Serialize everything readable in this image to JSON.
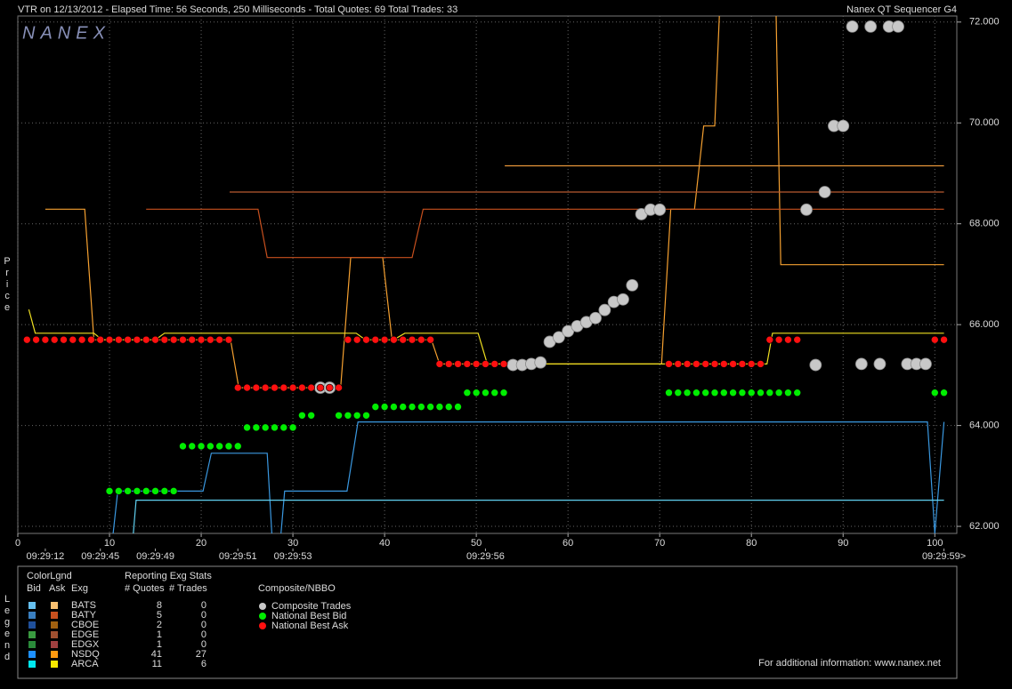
{
  "header": {
    "title": "VTR on 12/13/2012  -  Elapsed Time: 56 Seconds, 250 Milliseconds  -  Total Quotes: 69  Total Trades: 33",
    "product": "Nanex QT Sequencer G4",
    "logo": "NANEX"
  },
  "chart_data": {
    "type": "scatter",
    "y_label": "Price",
    "grid": true,
    "xlim": [
      0,
      102.4
    ],
    "ylim": [
      61.86,
      72.12
    ],
    "xticks": [
      0,
      10,
      20,
      30,
      40,
      50,
      60,
      70,
      80,
      90,
      100
    ],
    "yticks": [
      {
        "value": 62,
        "label": "62.000"
      },
      {
        "value": 64,
        "label": "64.000"
      },
      {
        "value": 66,
        "label": "66.000"
      },
      {
        "value": 68,
        "label": "68.000"
      },
      {
        "value": 70,
        "label": "70.000"
      },
      {
        "value": 72,
        "label": "72.000"
      }
    ],
    "time_ticks": [
      {
        "value": 3,
        "label": "09:29:12"
      },
      {
        "value": 9,
        "label": "09:29:45"
      },
      {
        "value": 15,
        "label": "09:29:49"
      },
      {
        "value": 24,
        "label": "09:29:51"
      },
      {
        "value": 30,
        "label": "09:29:53"
      },
      {
        "value": 51,
        "label": "09:29:56"
      },
      {
        "value": 101,
        "label": "09:29:59>"
      }
    ],
    "series": [
      {
        "name": "Composite Trades",
        "type": "scatter",
        "color": "#c8c8c8",
        "x": [
          33,
          34,
          54,
          55,
          56,
          57,
          58,
          59,
          60,
          61,
          62,
          63,
          64,
          65,
          66,
          67,
          68,
          69,
          70,
          86,
          87,
          88,
          89,
          90,
          91,
          92,
          93,
          94,
          95,
          96,
          97,
          98,
          99
        ],
        "values": [
          64.75,
          64.75,
          65.2,
          65.2,
          65.22,
          65.25,
          65.66,
          65.75,
          65.87,
          65.97,
          66.05,
          66.13,
          66.29,
          66.45,
          66.5,
          66.78,
          68.19,
          68.28,
          68.28,
          68.28,
          65.2,
          68.63,
          69.94,
          69.94,
          71.91,
          65.22,
          71.91,
          65.22,
          71.91,
          71.91,
          65.22,
          65.22,
          65.22
        ]
      },
      {
        "name": "National Best Bid",
        "type": "scatter",
        "color": "#00ee00",
        "x": [
          10,
          11,
          12,
          13,
          14,
          15,
          16,
          17,
          18,
          19,
          20,
          21,
          22,
          23,
          24,
          25,
          26,
          27,
          28,
          29,
          30,
          31,
          32,
          35,
          36,
          37,
          38,
          39,
          40,
          41,
          42,
          43,
          44,
          45,
          46,
          47,
          48,
          49,
          50,
          51,
          52,
          53,
          71,
          72,
          73,
          74,
          75,
          76,
          77,
          78,
          79,
          80,
          81,
          82,
          83,
          84,
          85,
          100,
          101
        ],
        "values": [
          62.7,
          62.7,
          62.7,
          62.7,
          62.7,
          62.7,
          62.7,
          62.7,
          63.59,
          63.59,
          63.59,
          63.59,
          63.59,
          63.59,
          63.59,
          63.96,
          63.96,
          63.96,
          63.96,
          63.96,
          63.96,
          64.2,
          64.2,
          64.2,
          64.2,
          64.2,
          64.2,
          64.37,
          64.37,
          64.37,
          64.37,
          64.37,
          64.37,
          64.37,
          64.37,
          64.37,
          64.37,
          64.65,
          64.65,
          64.65,
          64.65,
          64.65,
          64.65,
          64.65,
          64.65,
          64.65,
          64.65,
          64.65,
          64.65,
          64.65,
          64.65,
          64.65,
          64.65,
          64.65,
          64.65,
          64.65,
          64.65,
          64.65,
          64.65
        ]
      },
      {
        "name": "National Best Ask",
        "type": "scatter",
        "color": "#ff1010",
        "x": [
          1,
          2,
          3,
          4,
          5,
          6,
          7,
          8,
          9,
          10,
          11,
          12,
          13,
          14,
          15,
          16,
          17,
          18,
          19,
          20,
          21,
          22,
          23,
          24,
          25,
          26,
          27,
          28,
          29,
          30,
          31,
          32,
          33,
          34,
          35,
          36,
          37,
          38,
          39,
          40,
          41,
          42,
          43,
          44,
          45,
          46,
          47,
          48,
          49,
          50,
          51,
          52,
          53,
          71,
          72,
          73,
          74,
          75,
          76,
          77,
          78,
          79,
          80,
          81,
          82,
          83,
          84,
          85,
          100,
          101
        ],
        "values": [
          65.7,
          65.7,
          65.7,
          65.7,
          65.7,
          65.7,
          65.7,
          65.7,
          65.7,
          65.7,
          65.7,
          65.7,
          65.7,
          65.7,
          65.7,
          65.7,
          65.7,
          65.7,
          65.7,
          65.7,
          65.7,
          65.7,
          65.7,
          64.75,
          64.75,
          64.75,
          64.75,
          64.75,
          64.75,
          64.75,
          64.75,
          64.75,
          64.75,
          64.75,
          64.75,
          65.7,
          65.7,
          65.7,
          65.7,
          65.7,
          65.7,
          65.7,
          65.7,
          65.7,
          65.7,
          65.22,
          65.22,
          65.22,
          65.22,
          65.22,
          65.22,
          65.22,
          65.22,
          65.22,
          65.22,
          65.22,
          65.22,
          65.22,
          65.22,
          65.22,
          65.22,
          65.22,
          65.22,
          65.22,
          65.7,
          65.7,
          65.7,
          65.7,
          65.7,
          65.7
        ]
      },
      {
        "type": "line",
        "color": "#f5a030",
        "x": [
          3,
          7.3,
          8.3,
          23.2,
          24.1,
          35.2,
          36.3,
          39.8,
          40.8,
          45.1,
          46,
          70.2,
          71.2,
          73.8,
          74.8,
          76,
          76.5,
          null,
          82.7,
          83.2,
          101
        ],
        "values": [
          68.29,
          68.29,
          65.7,
          65.7,
          64.75,
          64.75,
          67.33,
          67.33,
          65.7,
          65.7,
          65.22,
          65.22,
          68.29,
          68.29,
          69.94,
          69.94,
          72.12,
          null,
          72.12,
          67.19,
          67.19
        ]
      },
      {
        "type": "line",
        "color": "#c8501e",
        "x": [
          14,
          26.2,
          27.2,
          43,
          44.2,
          101
        ],
        "values": [
          68.29,
          68.29,
          67.33,
          67.33,
          68.29,
          68.29
        ]
      },
      {
        "type": "line",
        "color": "#b85a30",
        "x": [
          23.1,
          101
        ],
        "values": [
          68.63,
          68.63
        ]
      },
      {
        "type": "line",
        "color": "#e8963a",
        "x": [
          53.1,
          101
        ],
        "values": [
          69.15,
          69.15
        ]
      },
      {
        "type": "line",
        "color": "#f0e020",
        "x": [
          1.2,
          1.9,
          8.3,
          9.2,
          15,
          16,
          36.9,
          37.9,
          41,
          42.2,
          50.2,
          51.2,
          81.7,
          82.3,
          101
        ],
        "values": [
          66.3,
          65.83,
          65.83,
          65.7,
          65.7,
          65.83,
          65.83,
          65.7,
          65.7,
          65.83,
          65.83,
          65.22,
          65.22,
          65.83,
          65.83
        ]
      },
      {
        "type": "line",
        "color": "#3a98e0",
        "x": [
          10.4,
          10.9,
          20.2,
          21.1,
          27.2,
          27.7,
          null,
          28.7,
          29.1,
          35.9,
          37.1,
          99.2,
          100,
          101
        ],
        "values": [
          61.86,
          62.7,
          62.7,
          63.45,
          63.45,
          61.86,
          null,
          61.86,
          62.7,
          62.7,
          64.07,
          64.07,
          61.86,
          64.07
        ]
      },
      {
        "type": "line",
        "color": "#60d0f0",
        "x": [
          12.6,
          12.9,
          101
        ],
        "values": [
          61.86,
          62.52,
          62.52
        ]
      }
    ]
  },
  "legend": {
    "title": "Legend",
    "color_header": "ColorLgnd",
    "stats_header": "Reporting Exg Stats",
    "columns": [
      "Bid",
      "Ask",
      "Exg",
      "# Quotes",
      "# Trades"
    ],
    "composite_header": "Composite/NBBO",
    "exchanges": [
      {
        "name": "BATS",
        "bid_color": "#66c0f0",
        "ask_color": "#f8c070",
        "quotes": 8,
        "trades": 0
      },
      {
        "name": "BATY",
        "bid_color": "#3a7fc0",
        "ask_color": "#c8501e",
        "quotes": 5,
        "trades": 0
      },
      {
        "name": "CBOE",
        "bid_color": "#1f4f9a",
        "ask_color": "#a06010",
        "quotes": 2,
        "trades": 0
      },
      {
        "name": "EDGE",
        "bid_color": "#3a9a40",
        "ask_color": "#a05030",
        "quotes": 1,
        "trades": 0
      },
      {
        "name": "EDGX",
        "bid_color": "#2a8a3a",
        "ask_color": "#a04040",
        "quotes": 1,
        "trades": 0
      },
      {
        "name": "NSDQ",
        "bid_color": "#1e90ff",
        "ask_color": "#ff9a10",
        "quotes": 41,
        "trades": 27
      },
      {
        "name": "ARCA",
        "bid_color": "#00e8f0",
        "ask_color": "#f8e800",
        "quotes": 11,
        "trades": 6
      }
    ],
    "footer": "For additional information: www.nanex.net"
  }
}
